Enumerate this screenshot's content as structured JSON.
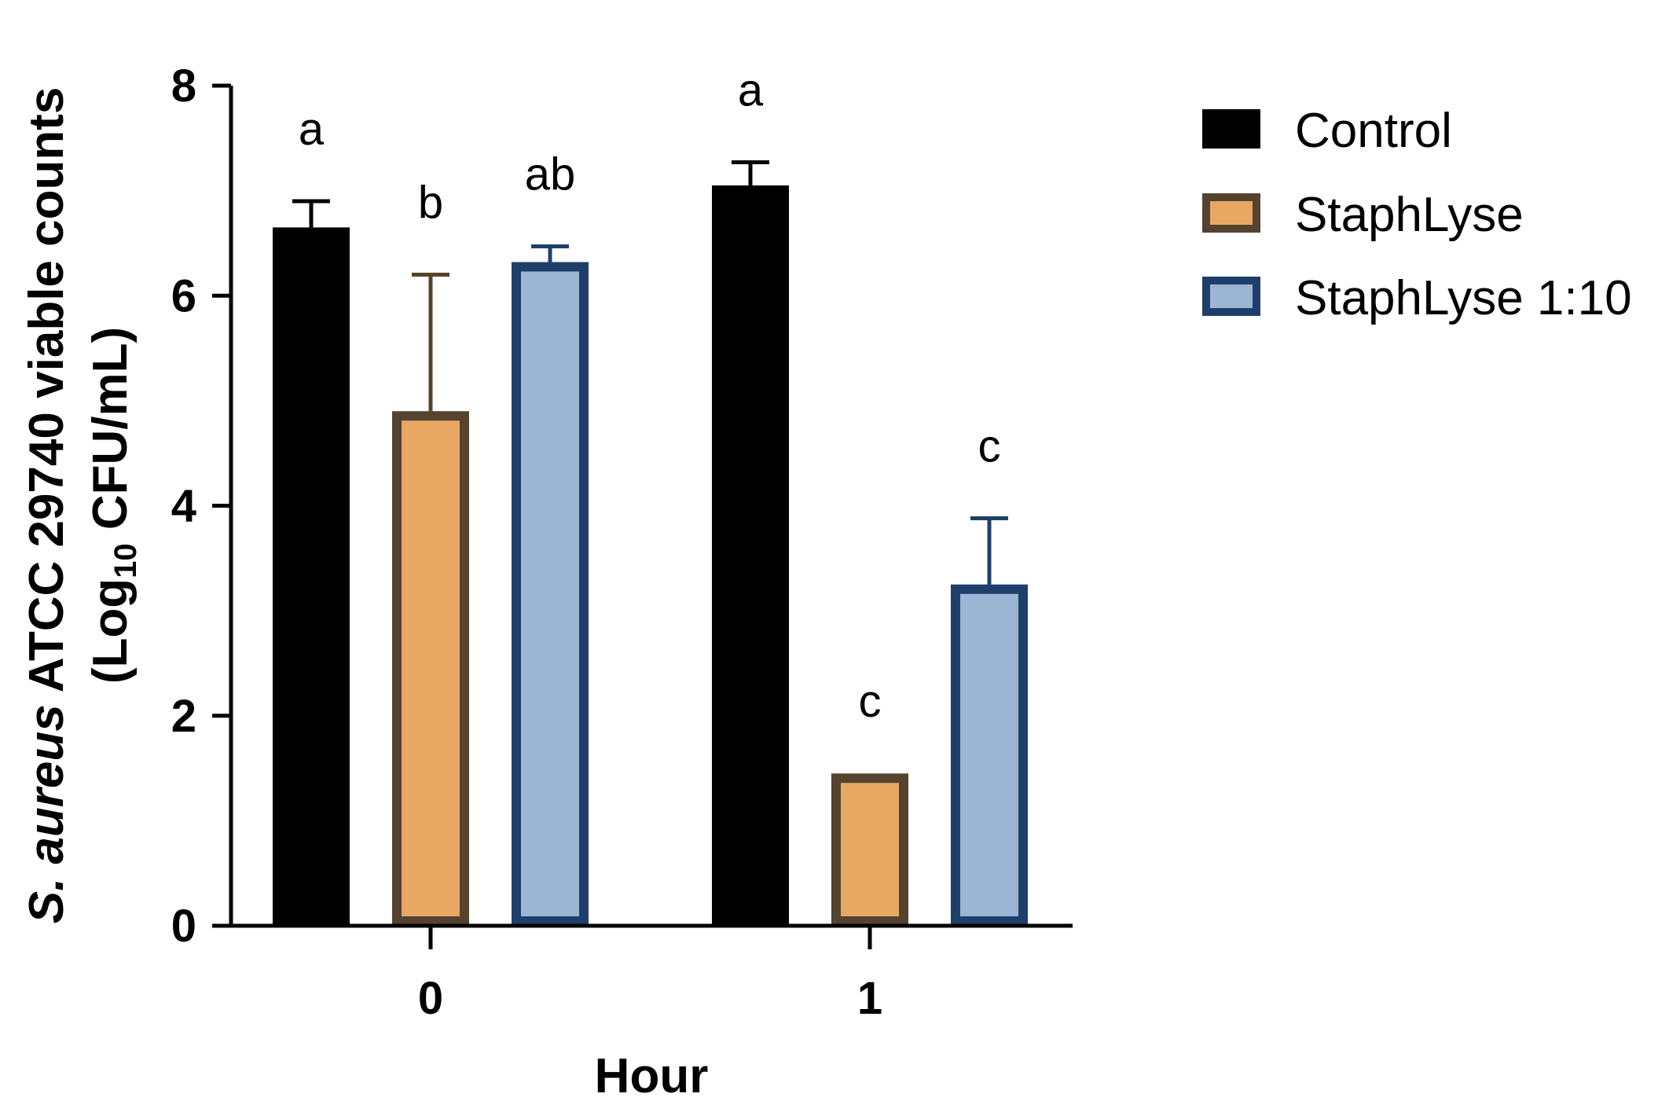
{
  "chart_data": {
    "type": "bar",
    "title": "",
    "xlabel": "Hour",
    "ylabel": {
      "italic_part": "S. aureus",
      "line1_rest": " ATCC 29740 viable counts",
      "line2_prefix": "(Log",
      "line2_subscript": "10",
      "line2_suffix": " CFU/mL)"
    },
    "ylim": [
      0,
      8
    ],
    "yticks": [
      "0",
      "2",
      "4",
      "6",
      "8"
    ],
    "categories": [
      "0",
      "1"
    ],
    "series": [
      {
        "name": "Control",
        "fill": "#000000",
        "stroke": "#000000",
        "values": [
          6.65,
          7.05
        ],
        "errors": [
          0.25,
          0.22
        ],
        "letters": [
          "a",
          "a"
        ]
      },
      {
        "name": "StaphLyse",
        "fill": "#E8A863",
        "stroke": "#54432E",
        "values": [
          4.9,
          1.45
        ],
        "errors": [
          1.3,
          0
        ],
        "letters": [
          "b",
          "c"
        ]
      },
      {
        "name": "StaphLyse 1:10",
        "fill": "#9BB5D4",
        "stroke": "#1F3F6B",
        "values": [
          6.32,
          3.25
        ],
        "errors": [
          0.15,
          0.63
        ],
        "letters": [
          "ab",
          "c"
        ]
      }
    ],
    "legend_position": "top-right"
  }
}
